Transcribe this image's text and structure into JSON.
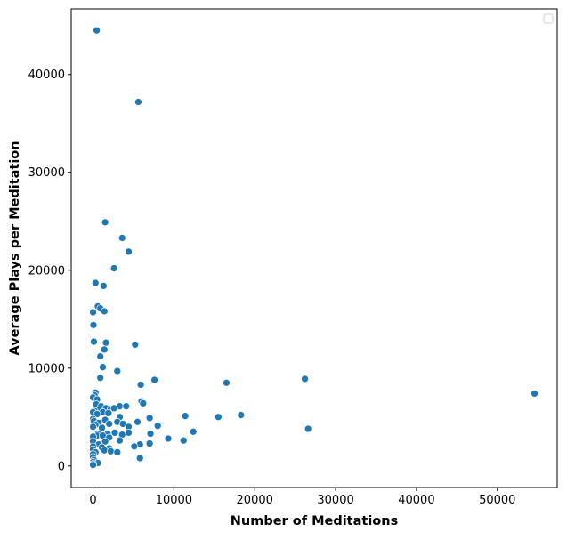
{
  "chart_data": {
    "type": "scatter",
    "xlabel": "Number of Meditations",
    "ylabel": "Average Plays per Meditation",
    "xlim": [
      -2700,
      57400
    ],
    "ylim": [
      -2200,
      46700
    ],
    "xticks": [
      0,
      10000,
      20000,
      30000,
      40000,
      50000
    ],
    "yticks": [
      0,
      10000,
      20000,
      30000,
      40000
    ],
    "xtick_labels": [
      "0",
      "10000",
      "20000",
      "30000",
      "40000",
      "50000"
    ],
    "ytick_labels": [
      "0",
      "10000",
      "20000",
      "30000",
      "40000"
    ],
    "grid": false,
    "legend": "top-right (empty)",
    "color": "#1f77b4",
    "points": [
      [
        450,
        44500
      ],
      [
        5600,
        37200
      ],
      [
        1500,
        24900
      ],
      [
        3600,
        23300
      ],
      [
        4400,
        21900
      ],
      [
        2600,
        20200
      ],
      [
        300,
        18700
      ],
      [
        1300,
        18400
      ],
      [
        600,
        16300
      ],
      [
        900,
        16100
      ],
      [
        1400,
        15800
      ],
      [
        0,
        15700
      ],
      [
        50,
        14400
      ],
      [
        1600,
        12600
      ],
      [
        100,
        12700
      ],
      [
        5200,
        12400
      ],
      [
        1400,
        11900
      ],
      [
        900,
        11200
      ],
      [
        1200,
        10100
      ],
      [
        3000,
        9700
      ],
      [
        900,
        9000
      ],
      [
        7600,
        8800
      ],
      [
        5900,
        8300
      ],
      [
        16500,
        8500
      ],
      [
        26200,
        8900
      ],
      [
        54600,
        7400
      ],
      [
        300,
        7500
      ],
      [
        200,
        7200
      ],
      [
        0,
        7000
      ],
      [
        500,
        6800
      ],
      [
        6000,
        6600
      ],
      [
        6200,
        6400
      ],
      [
        400,
        6300
      ],
      [
        1000,
        6100
      ],
      [
        3300,
        6100
      ],
      [
        4100,
        6100
      ],
      [
        1600,
        5900
      ],
      [
        2200,
        5800
      ],
      [
        2600,
        5900
      ],
      [
        700,
        5700
      ],
      [
        200,
        5600
      ],
      [
        0,
        5500
      ],
      [
        1200,
        5500
      ],
      [
        1900,
        5400
      ],
      [
        500,
        5300
      ],
      [
        11400,
        5100
      ],
      [
        18300,
        5200
      ],
      [
        15500,
        5000
      ],
      [
        3300,
        5000
      ],
      [
        7000,
        4900
      ],
      [
        0,
        4800
      ],
      [
        1500,
        4700
      ],
      [
        5500,
        4500
      ],
      [
        3000,
        4500
      ],
      [
        100,
        4600
      ],
      [
        700,
        4400
      ],
      [
        2000,
        4300
      ],
      [
        3700,
        4300
      ],
      [
        300,
        4200
      ],
      [
        8000,
        4100
      ],
      [
        4400,
        4000
      ],
      [
        0,
        4000
      ],
      [
        1100,
        3900
      ],
      [
        26600,
        3800
      ],
      [
        12400,
        3500
      ],
      [
        2700,
        3400
      ],
      [
        4400,
        3400
      ],
      [
        600,
        3300
      ],
      [
        7100,
        3300
      ],
      [
        1800,
        3300
      ],
      [
        3600,
        3200
      ],
      [
        500,
        3100
      ],
      [
        0,
        3000
      ],
      [
        1200,
        3100
      ],
      [
        2000,
        2900
      ],
      [
        9300,
        2800
      ],
      [
        11200,
        2600
      ],
      [
        3300,
        2600
      ],
      [
        0,
        2500
      ],
      [
        1500,
        2500
      ],
      [
        7000,
        2300
      ],
      [
        5800,
        2200
      ],
      [
        700,
        2200
      ],
      [
        5100,
        2000
      ],
      [
        0,
        2000
      ],
      [
        1100,
        1900
      ],
      [
        2000,
        1800
      ],
      [
        0,
        1700
      ],
      [
        1400,
        1600
      ],
      [
        2200,
        1500
      ],
      [
        3000,
        1400
      ],
      [
        300,
        1400
      ],
      [
        0,
        1200
      ],
      [
        5800,
        800
      ],
      [
        0,
        900
      ],
      [
        100,
        600
      ],
      [
        0,
        400
      ],
      [
        600,
        300
      ],
      [
        0,
        200
      ],
      [
        0,
        100
      ]
    ]
  }
}
